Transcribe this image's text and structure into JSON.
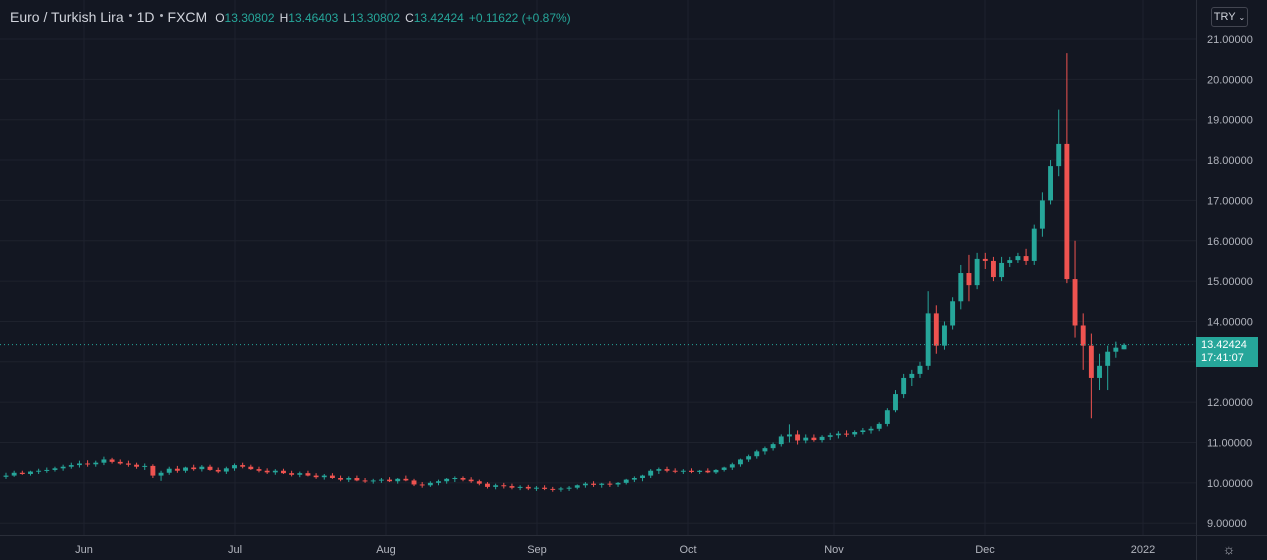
{
  "legend": {
    "symbol": "Euro / Turkish Lira",
    "interval": "1D",
    "exchange": "FXCM",
    "open_label": "O",
    "open": "13.30802",
    "high_label": "H",
    "high": "13.46403",
    "low_label": "L",
    "low": "13.30802",
    "close_label": "C",
    "close": "13.42424",
    "change": "+0.11622 (+0.87%)"
  },
  "currency_selector": {
    "label": "TRY",
    "icon": "chevron-down-icon"
  },
  "last_price": {
    "value": "13.42424",
    "countdown": "17:41:07"
  },
  "settings_icon": "gear-icon",
  "colors": {
    "background": "#131722",
    "up": "#26a69a",
    "down": "#ef5350",
    "grid": "#1e222d",
    "text": "#d1d4dc"
  },
  "chart_data": {
    "type": "candlestick",
    "y_axis": {
      "min": 8.75,
      "max": 21.5,
      "ticks": [
        "21.00000",
        "20.00000",
        "19.00000",
        "18.00000",
        "17.00000",
        "16.00000",
        "15.00000",
        "14.00000",
        "13.00000",
        "12.00000",
        "11.00000",
        "10.00000",
        "9.00000"
      ],
      "tick_values": [
        21,
        20,
        19,
        18,
        17,
        16,
        15,
        14,
        13,
        12,
        11,
        10,
        9
      ]
    },
    "x_axis": {
      "ticks": [
        "Jun",
        "Jul",
        "Aug",
        "Sep",
        "Oct",
        "Nov",
        "Dec",
        "2022"
      ]
    },
    "grid": true,
    "last_value": 13.42424,
    "candles_ohlc": [
      [
        10.15,
        10.25,
        10.1,
        10.18
      ],
      [
        10.18,
        10.3,
        10.15,
        10.25
      ],
      [
        10.25,
        10.3,
        10.2,
        10.22
      ],
      [
        10.22,
        10.3,
        10.18,
        10.28
      ],
      [
        10.28,
        10.35,
        10.22,
        10.3
      ],
      [
        10.3,
        10.38,
        10.25,
        10.32
      ],
      [
        10.32,
        10.4,
        10.28,
        10.36
      ],
      [
        10.36,
        10.45,
        10.3,
        10.4
      ],
      [
        10.4,
        10.5,
        10.35,
        10.44
      ],
      [
        10.44,
        10.55,
        10.38,
        10.48
      ],
      [
        10.48,
        10.56,
        10.4,
        10.46
      ],
      [
        10.46,
        10.55,
        10.4,
        10.5
      ],
      [
        10.5,
        10.65,
        10.44,
        10.58
      ],
      [
        10.58,
        10.62,
        10.48,
        10.52
      ],
      [
        10.52,
        10.58,
        10.45,
        10.48
      ],
      [
        10.48,
        10.55,
        10.4,
        10.45
      ],
      [
        10.45,
        10.5,
        10.35,
        10.4
      ],
      [
        10.4,
        10.48,
        10.32,
        10.42
      ],
      [
        10.42,
        10.46,
        10.12,
        10.18
      ],
      [
        10.18,
        10.3,
        10.05,
        10.25
      ],
      [
        10.25,
        10.4,
        10.2,
        10.35
      ],
      [
        10.35,
        10.42,
        10.25,
        10.3
      ],
      [
        10.3,
        10.4,
        10.25,
        10.38
      ],
      [
        10.38,
        10.45,
        10.3,
        10.34
      ],
      [
        10.34,
        10.44,
        10.28,
        10.4
      ],
      [
        10.4,
        10.45,
        10.3,
        10.32
      ],
      [
        10.32,
        10.38,
        10.24,
        10.28
      ],
      [
        10.28,
        10.4,
        10.22,
        10.36
      ],
      [
        10.36,
        10.48,
        10.3,
        10.44
      ],
      [
        10.44,
        10.5,
        10.36,
        10.4
      ],
      [
        10.4,
        10.45,
        10.32,
        10.34
      ],
      [
        10.34,
        10.4,
        10.26,
        10.3
      ],
      [
        10.3,
        10.36,
        10.22,
        10.26
      ],
      [
        10.26,
        10.34,
        10.2,
        10.3
      ],
      [
        10.3,
        10.35,
        10.22,
        10.24
      ],
      [
        10.24,
        10.3,
        10.16,
        10.2
      ],
      [
        10.2,
        10.28,
        10.14,
        10.24
      ],
      [
        10.24,
        10.3,
        10.16,
        10.18
      ],
      [
        10.18,
        10.24,
        10.1,
        10.14
      ],
      [
        10.14,
        10.22,
        10.08,
        10.18
      ],
      [
        10.18,
        10.24,
        10.1,
        10.12
      ],
      [
        10.12,
        10.18,
        10.04,
        10.08
      ],
      [
        10.08,
        10.16,
        10.02,
        10.12
      ],
      [
        10.12,
        10.18,
        10.04,
        10.06
      ],
      [
        10.06,
        10.12,
        10.0,
        10.04
      ],
      [
        10.04,
        10.1,
        9.98,
        10.06
      ],
      [
        10.06,
        10.12,
        10.0,
        10.08
      ],
      [
        10.08,
        10.14,
        10.02,
        10.04
      ],
      [
        10.04,
        10.12,
        9.98,
        10.1
      ],
      [
        10.1,
        10.18,
        10.04,
        10.06
      ],
      [
        10.06,
        10.1,
        9.92,
        9.96
      ],
      [
        9.96,
        10.02,
        9.88,
        9.94
      ],
      [
        9.94,
        10.04,
        9.9,
        10.0
      ],
      [
        10.0,
        10.08,
        9.94,
        10.04
      ],
      [
        10.04,
        10.12,
        9.98,
        10.1
      ],
      [
        10.1,
        10.16,
        10.02,
        10.12
      ],
      [
        10.12,
        10.16,
        10.04,
        10.08
      ],
      [
        10.08,
        10.14,
        10.0,
        10.04
      ],
      [
        10.04,
        10.08,
        9.94,
        9.98
      ],
      [
        9.98,
        10.02,
        9.86,
        9.9
      ],
      [
        9.9,
        9.98,
        9.84,
        9.94
      ],
      [
        9.94,
        10.0,
        9.86,
        9.92
      ],
      [
        9.92,
        9.98,
        9.84,
        9.88
      ],
      [
        9.88,
        9.94,
        9.82,
        9.9
      ],
      [
        9.9,
        9.95,
        9.82,
        9.86
      ],
      [
        9.86,
        9.92,
        9.8,
        9.88
      ],
      [
        9.88,
        9.94,
        9.82,
        9.85
      ],
      [
        9.85,
        9.9,
        9.78,
        9.84
      ],
      [
        9.84,
        9.9,
        9.78,
        9.86
      ],
      [
        9.86,
        9.92,
        9.8,
        9.88
      ],
      [
        9.88,
        9.96,
        9.84,
        9.94
      ],
      [
        9.94,
        10.02,
        9.88,
        9.98
      ],
      [
        9.98,
        10.04,
        9.9,
        9.95
      ],
      [
        9.95,
        10.0,
        9.88,
        9.98
      ],
      [
        9.98,
        10.04,
        9.9,
        9.96
      ],
      [
        9.96,
        10.02,
        9.9,
        10.0
      ],
      [
        10.0,
        10.1,
        9.96,
        10.08
      ],
      [
        10.08,
        10.16,
        10.02,
        10.12
      ],
      [
        10.12,
        10.2,
        10.04,
        10.18
      ],
      [
        10.18,
        10.34,
        10.12,
        10.3
      ],
      [
        10.3,
        10.38,
        10.22,
        10.34
      ],
      [
        10.34,
        10.4,
        10.26,
        10.3
      ],
      [
        10.3,
        10.36,
        10.24,
        10.28
      ],
      [
        10.28,
        10.34,
        10.22,
        10.3
      ],
      [
        10.3,
        10.36,
        10.24,
        10.27
      ],
      [
        10.27,
        10.32,
        10.22,
        10.3
      ],
      [
        10.3,
        10.36,
        10.24,
        10.26
      ],
      [
        10.26,
        10.34,
        10.22,
        10.32
      ],
      [
        10.32,
        10.4,
        10.28,
        10.38
      ],
      [
        10.38,
        10.5,
        10.32,
        10.46
      ],
      [
        10.46,
        10.6,
        10.4,
        10.58
      ],
      [
        10.58,
        10.7,
        10.52,
        10.66
      ],
      [
        10.66,
        10.82,
        10.6,
        10.78
      ],
      [
        10.78,
        10.9,
        10.7,
        10.86
      ],
      [
        10.86,
        11.0,
        10.8,
        10.96
      ],
      [
        10.96,
        11.2,
        10.9,
        11.15
      ],
      [
        11.15,
        11.45,
        11.0,
        11.2
      ],
      [
        11.2,
        11.3,
        10.95,
        11.05
      ],
      [
        11.05,
        11.2,
        10.98,
        11.12
      ],
      [
        11.12,
        11.2,
        11.02,
        11.06
      ],
      [
        11.06,
        11.18,
        11.0,
        11.14
      ],
      [
        11.14,
        11.24,
        11.06,
        11.18
      ],
      [
        11.18,
        11.28,
        11.1,
        11.22
      ],
      [
        11.22,
        11.3,
        11.14,
        11.2
      ],
      [
        11.2,
        11.3,
        11.14,
        11.26
      ],
      [
        11.26,
        11.36,
        11.2,
        11.3
      ],
      [
        11.3,
        11.4,
        11.22,
        11.34
      ],
      [
        11.34,
        11.5,
        11.28,
        11.46
      ],
      [
        11.46,
        11.85,
        11.4,
        11.8
      ],
      [
        11.8,
        12.3,
        11.75,
        12.2
      ],
      [
        12.2,
        12.7,
        12.1,
        12.6
      ],
      [
        12.6,
        12.8,
        12.4,
        12.7
      ],
      [
        12.7,
        13.0,
        12.6,
        12.9
      ],
      [
        12.9,
        14.75,
        12.8,
        14.2
      ],
      [
        14.2,
        14.4,
        13.2,
        13.4
      ],
      [
        13.4,
        14.0,
        13.3,
        13.9
      ],
      [
        13.9,
        14.6,
        13.8,
        14.5
      ],
      [
        14.5,
        15.4,
        14.3,
        15.2
      ],
      [
        15.2,
        15.65,
        14.5,
        14.9
      ],
      [
        14.9,
        15.7,
        14.8,
        15.55
      ],
      [
        15.55,
        15.7,
        15.3,
        15.5
      ],
      [
        15.5,
        15.6,
        15.0,
        15.1
      ],
      [
        15.1,
        15.6,
        15.0,
        15.45
      ],
      [
        15.45,
        15.6,
        15.35,
        15.52
      ],
      [
        15.52,
        15.7,
        15.45,
        15.62
      ],
      [
        15.62,
        15.8,
        15.4,
        15.5
      ],
      [
        15.5,
        16.4,
        15.4,
        16.3
      ],
      [
        16.3,
        17.2,
        16.1,
        17.0
      ],
      [
        17.0,
        18.0,
        16.9,
        17.85
      ],
      [
        17.85,
        19.25,
        17.6,
        18.4
      ],
      [
        18.4,
        20.65,
        14.95,
        15.05
      ],
      [
        15.05,
        16.0,
        13.6,
        13.9
      ],
      [
        13.9,
        14.2,
        12.8,
        13.4
      ],
      [
        13.4,
        13.7,
        11.6,
        12.6
      ],
      [
        12.6,
        13.2,
        12.3,
        12.9
      ],
      [
        12.9,
        13.4,
        12.3,
        13.25
      ],
      [
        13.25,
        13.5,
        13.1,
        13.35
      ],
      [
        13.31,
        13.46,
        13.31,
        13.42
      ]
    ]
  }
}
